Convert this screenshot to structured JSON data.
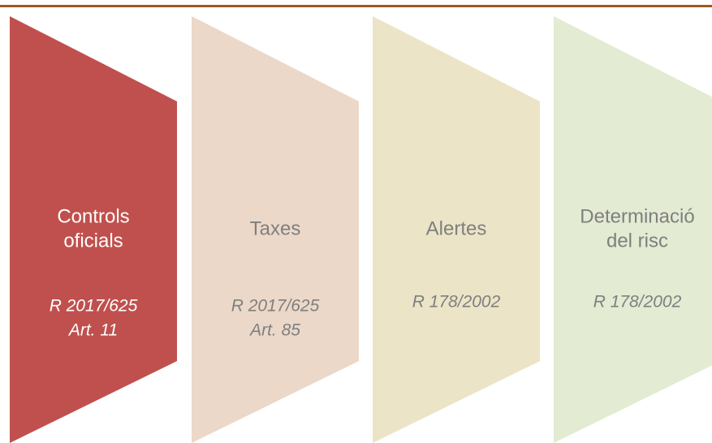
{
  "steps": [
    {
      "label": [
        "Controls",
        "oficials"
      ],
      "reference": [
        "R 2017/625",
        "Art. 11"
      ]
    },
    {
      "label": [
        "Taxes"
      ],
      "reference": [
        "R 2017/625",
        "Art. 85"
      ]
    },
    {
      "label": [
        "Alertes"
      ],
      "reference": [
        "R 178/2002"
      ]
    },
    {
      "label": [
        "Determinació",
        "del risc"
      ],
      "reference": [
        "R 178/2002"
      ]
    }
  ]
}
